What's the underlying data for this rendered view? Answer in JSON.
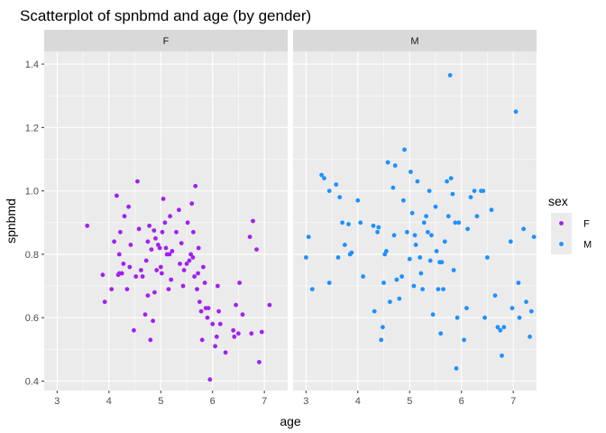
{
  "chart_data": {
    "type": "scatter",
    "title": "Scatterplot of spnbmd and age (by gender)",
    "xlabel": "age",
    "ylabel": "spnbmd",
    "xlim": [
      2.75,
      7.45
    ],
    "ylim": [
      0.37,
      1.44
    ],
    "x_ticks": [
      "3",
      "4",
      "5",
      "6",
      "7"
    ],
    "x_tick_values": [
      3,
      4,
      5,
      6,
      7
    ],
    "y_ticks": [
      "0.4",
      "0.6",
      "0.8",
      "1.0",
      "1.2",
      "1.4"
    ],
    "y_tick_values": [
      0.4,
      0.6,
      0.8,
      1.0,
      1.2,
      1.4
    ],
    "grid": true,
    "legend": {
      "title": "sex",
      "position": "right"
    },
    "panels": [
      {
        "name": "F",
        "color": "#A020F0",
        "points": [
          [
            3.58,
            0.89
          ],
          [
            3.88,
            0.735
          ],
          [
            3.92,
            0.65
          ],
          [
            4.05,
            0.69
          ],
          [
            4.1,
            0.84
          ],
          [
            4.15,
            0.985
          ],
          [
            4.18,
            0.735
          ],
          [
            4.2,
            0.8
          ],
          [
            4.22,
            0.87
          ],
          [
            4.2,
            0.74
          ],
          [
            4.25,
            0.74
          ],
          [
            4.28,
            0.77
          ],
          [
            4.3,
            0.92
          ],
          [
            4.35,
            0.69
          ],
          [
            4.38,
            0.95
          ],
          [
            4.4,
            0.76
          ],
          [
            4.42,
            0.83
          ],
          [
            4.48,
            0.56
          ],
          [
            4.52,
            0.73
          ],
          [
            4.55,
            1.03
          ],
          [
            4.58,
            0.88
          ],
          [
            4.62,
            0.75
          ],
          [
            4.65,
            0.73
          ],
          [
            4.7,
            0.61
          ],
          [
            4.72,
            0.78
          ],
          [
            4.75,
            0.67
          ],
          [
            4.75,
            0.84
          ],
          [
            4.78,
            0.89
          ],
          [
            4.8,
            0.53
          ],
          [
            4.82,
            0.815
          ],
          [
            4.85,
            0.59
          ],
          [
            4.87,
            0.875
          ],
          [
            4.88,
            0.68
          ],
          [
            4.9,
            0.85
          ],
          [
            4.92,
            0.75
          ],
          [
            4.95,
            0.83
          ],
          [
            4.98,
            0.82
          ],
          [
            5.0,
            0.76
          ],
          [
            5.02,
            0.74
          ],
          [
            5.03,
            0.87
          ],
          [
            5.05,
            0.975
          ],
          [
            5.08,
            0.9
          ],
          [
            5.1,
            0.82
          ],
          [
            5.12,
            0.8
          ],
          [
            5.15,
            0.69
          ],
          [
            5.17,
            0.8
          ],
          [
            5.18,
            0.92
          ],
          [
            5.2,
            0.72
          ],
          [
            5.22,
            0.81
          ],
          [
            5.3,
            0.87
          ],
          [
            5.35,
            0.94
          ],
          [
            5.37,
            0.77
          ],
          [
            5.4,
            0.835
          ],
          [
            5.43,
            0.7
          ],
          [
            5.45,
            0.75
          ],
          [
            5.5,
            0.77
          ],
          [
            5.52,
            0.9
          ],
          [
            5.55,
            0.78
          ],
          [
            5.58,
            0.8
          ],
          [
            5.6,
            0.96
          ],
          [
            5.62,
            0.79
          ],
          [
            5.63,
            0.87
          ],
          [
            5.65,
            0.73
          ],
          [
            5.67,
            1.015
          ],
          [
            5.7,
            0.69
          ],
          [
            5.72,
            0.74
          ],
          [
            5.73,
            0.82
          ],
          [
            5.75,
            0.65
          ],
          [
            5.78,
            0.62
          ],
          [
            5.8,
            0.53
          ],
          [
            5.82,
            0.76
          ],
          [
            5.85,
            0.71
          ],
          [
            5.87,
            0.63
          ],
          [
            5.9,
            0.6
          ],
          [
            5.92,
            0.63
          ],
          [
            5.95,
            0.405
          ],
          [
            6.0,
            0.58
          ],
          [
            6.05,
            0.51
          ],
          [
            6.08,
            0.54
          ],
          [
            6.1,
            0.7
          ],
          [
            6.12,
            0.62
          ],
          [
            6.15,
            0.58
          ],
          [
            6.25,
            0.49
          ],
          [
            6.4,
            0.56
          ],
          [
            6.42,
            0.54
          ],
          [
            6.45,
            0.64
          ],
          [
            6.5,
            0.55
          ],
          [
            6.52,
            0.71
          ],
          [
            6.58,
            0.61
          ],
          [
            6.72,
            0.855
          ],
          [
            6.75,
            0.55
          ],
          [
            6.78,
            0.905
          ],
          [
            6.85,
            0.815
          ],
          [
            6.9,
            0.46
          ],
          [
            6.95,
            0.555
          ],
          [
            7.1,
            0.64
          ]
        ]
      },
      {
        "name": "M",
        "color": "#1E90FF",
        "points": [
          [
            3.0,
            0.79
          ],
          [
            3.05,
            0.855
          ],
          [
            3.12,
            0.69
          ],
          [
            3.3,
            1.05
          ],
          [
            3.35,
            1.04
          ],
          [
            3.45,
            1.0
          ],
          [
            3.45,
            0.71
          ],
          [
            3.58,
            1.02
          ],
          [
            3.62,
            0.79
          ],
          [
            3.65,
            0.98
          ],
          [
            3.7,
            0.9
          ],
          [
            3.75,
            0.83
          ],
          [
            3.82,
            0.895
          ],
          [
            3.85,
            0.8
          ],
          [
            3.88,
            0.805
          ],
          [
            4.0,
            0.97
          ],
          [
            4.05,
            0.9
          ],
          [
            4.1,
            0.73
          ],
          [
            4.3,
            0.89
          ],
          [
            4.32,
            0.62
          ],
          [
            4.38,
            0.87
          ],
          [
            4.4,
            0.885
          ],
          [
            4.45,
            0.53
          ],
          [
            4.48,
            0.57
          ],
          [
            4.5,
            0.71
          ],
          [
            4.52,
            0.8
          ],
          [
            4.55,
            0.81
          ],
          [
            4.58,
            1.09
          ],
          [
            4.62,
            0.65
          ],
          [
            4.68,
            1.01
          ],
          [
            4.7,
            0.86
          ],
          [
            4.72,
            1.08
          ],
          [
            4.75,
            0.72
          ],
          [
            4.8,
            0.66
          ],
          [
            4.85,
            0.73
          ],
          [
            4.88,
            0.97
          ],
          [
            4.9,
            1.13
          ],
          [
            4.95,
            0.87
          ],
          [
            5.0,
            0.785
          ],
          [
            5.02,
            1.06
          ],
          [
            5.05,
            0.93
          ],
          [
            5.08,
            0.7
          ],
          [
            5.1,
            0.86
          ],
          [
            5.12,
            0.83
          ],
          [
            5.15,
            1.03
          ],
          [
            5.2,
            0.79
          ],
          [
            5.22,
            0.74
          ],
          [
            5.25,
            0.69
          ],
          [
            5.28,
            0.9
          ],
          [
            5.32,
            0.92
          ],
          [
            5.35,
            0.87
          ],
          [
            5.38,
            1.0
          ],
          [
            5.4,
            0.78
          ],
          [
            5.42,
            0.86
          ],
          [
            5.45,
            0.61
          ],
          [
            5.5,
            0.95
          ],
          [
            5.52,
            0.81
          ],
          [
            5.55,
            0.69
          ],
          [
            5.58,
            0.775
          ],
          [
            5.6,
            0.55
          ],
          [
            5.62,
            0.775
          ],
          [
            5.65,
            0.69
          ],
          [
            5.68,
            0.84
          ],
          [
            5.72,
            1.03
          ],
          [
            5.75,
            0.92
          ],
          [
            5.78,
            1.365
          ],
          [
            5.8,
            1.04
          ],
          [
            5.83,
            0.99
          ],
          [
            5.85,
            0.75
          ],
          [
            5.88,
            0.9
          ],
          [
            5.9,
            0.44
          ],
          [
            5.92,
            0.6
          ],
          [
            5.95,
            0.9
          ],
          [
            6.05,
            0.53
          ],
          [
            6.1,
            0.63
          ],
          [
            6.12,
            0.88
          ],
          [
            6.18,
            0.98
          ],
          [
            6.25,
            1.0
          ],
          [
            6.3,
            0.92
          ],
          [
            6.38,
            1.0
          ],
          [
            6.42,
            1.0
          ],
          [
            6.45,
            0.6
          ],
          [
            6.5,
            0.79
          ],
          [
            6.58,
            0.94
          ],
          [
            6.65,
            0.67
          ],
          [
            6.7,
            0.57
          ],
          [
            6.75,
            0.56
          ],
          [
            6.78,
            0.48
          ],
          [
            6.82,
            0.57
          ],
          [
            6.95,
            0.84
          ],
          [
            6.98,
            0.63
          ],
          [
            7.05,
            1.25
          ],
          [
            7.1,
            0.71
          ],
          [
            7.12,
            0.6
          ],
          [
            7.2,
            0.88
          ],
          [
            7.25,
            0.65
          ],
          [
            7.32,
            0.54
          ],
          [
            7.35,
            0.62
          ],
          [
            7.4,
            0.855
          ]
        ]
      }
    ]
  }
}
